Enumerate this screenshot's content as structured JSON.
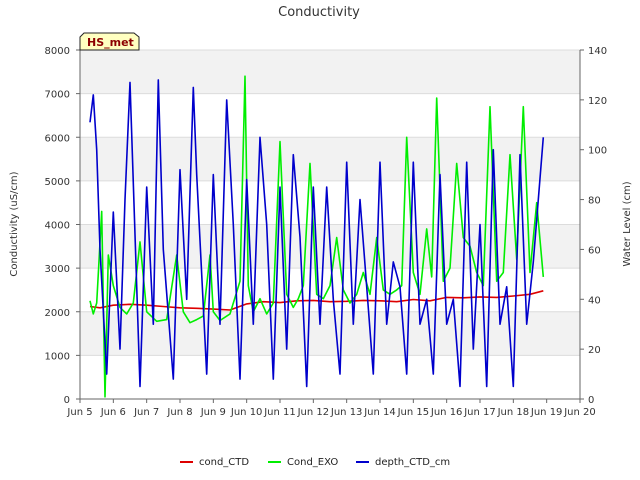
{
  "chart_data": {
    "type": "line",
    "title": "Conductivity",
    "badge": "HS_met",
    "xlabel": "",
    "ylabel_left": "Conductivity (uS/cm)",
    "ylabel_right": "Water Level (cm)",
    "x_range": [
      5,
      20
    ],
    "ylim_left": [
      0,
      8000
    ],
    "ylim_right": [
      0,
      140
    ],
    "x_ticks": [
      5,
      6,
      7,
      8,
      9,
      10,
      11,
      12,
      13,
      14,
      15,
      16,
      17,
      18,
      19,
      20
    ],
    "x_tick_labels": [
      "Jun 5",
      "Jun 6",
      "Jun 7",
      "Jun 8",
      "Jun 9",
      "Jun 10",
      "Jun 11",
      "Jun 12",
      "Jun 13",
      "Jun 14",
      "Jun 15",
      "Jun 16",
      "Jun 17",
      "Jun 18",
      "Jun 19",
      "Jun 20"
    ],
    "y_ticks_left": [
      0,
      1000,
      2000,
      3000,
      4000,
      5000,
      6000,
      7000,
      8000
    ],
    "y_ticks_right": [
      0,
      20,
      40,
      60,
      80,
      100,
      120,
      140
    ],
    "grid": true,
    "legend_position": "bottom",
    "series": [
      {
        "name": "cond_CTD",
        "color": "#dd0000",
        "axis": "left",
        "x": [
          5.3,
          5.6,
          6.0,
          6.5,
          7.0,
          7.5,
          8.0,
          8.5,
          9.0,
          9.5,
          10.0,
          10.5,
          11.0,
          11.5,
          12.0,
          12.5,
          13.0,
          13.5,
          14.0,
          14.5,
          15.0,
          15.5,
          16.0,
          16.5,
          17.0,
          17.5,
          18.0,
          18.5,
          18.9
        ],
        "y": [
          2120,
          2090,
          2150,
          2170,
          2150,
          2120,
          2090,
          2080,
          2060,
          2040,
          2180,
          2230,
          2210,
          2250,
          2260,
          2230,
          2240,
          2260,
          2250,
          2230,
          2280,
          2250,
          2330,
          2320,
          2340,
          2330,
          2360,
          2400,
          2480
        ]
      },
      {
        "name": "Cond_EXO",
        "color": "#00ee00",
        "axis": "left",
        "x": [
          5.3,
          5.4,
          5.5,
          5.65,
          5.75,
          5.85,
          6.0,
          6.2,
          6.4,
          6.6,
          6.8,
          7.0,
          7.3,
          7.6,
          7.9,
          8.1,
          8.3,
          8.5,
          8.7,
          8.9,
          9.0,
          9.2,
          9.5,
          9.8,
          9.95,
          10.05,
          10.2,
          10.4,
          10.6,
          10.8,
          11.0,
          11.2,
          11.4,
          11.55,
          11.7,
          11.9,
          12.1,
          12.3,
          12.5,
          12.7,
          12.9,
          13.1,
          13.3,
          13.5,
          13.7,
          13.9,
          14.1,
          14.3,
          14.5,
          14.65,
          14.8,
          15.0,
          15.2,
          15.4,
          15.55,
          15.7,
          15.9,
          16.1,
          16.3,
          16.5,
          16.7,
          16.9,
          17.1,
          17.3,
          17.5,
          17.7,
          17.9,
          18.1,
          18.3,
          18.5,
          18.7,
          18.9
        ],
        "y": [
          2250,
          1950,
          2200,
          4300,
          50,
          3300,
          2600,
          2100,
          1950,
          2200,
          3600,
          2000,
          1780,
          1820,
          3300,
          2000,
          1750,
          1820,
          1900,
          3300,
          2000,
          1800,
          1950,
          2700,
          7400,
          2600,
          2000,
          2300,
          1950,
          2200,
          5900,
          2400,
          2100,
          2300,
          2600,
          5400,
          2400,
          2300,
          2600,
          3700,
          2500,
          2200,
          2400,
          2900,
          2400,
          3700,
          2500,
          2400,
          2500,
          2600,
          6000,
          2900,
          2400,
          3900,
          2800,
          6900,
          2700,
          3000,
          5400,
          3700,
          3500,
          2900,
          2600,
          6700,
          2700,
          2900,
          5600,
          3200,
          6700,
          2900,
          4500,
          2800
        ]
      },
      {
        "name": "depth_CTD_cm",
        "color": "#0000cc",
        "axis": "right",
        "x": [
          5.3,
          5.4,
          5.5,
          5.6,
          5.8,
          6.0,
          6.2,
          6.35,
          6.5,
          6.8,
          7.0,
          7.2,
          7.35,
          7.5,
          7.8,
          8.0,
          8.2,
          8.4,
          8.5,
          8.8,
          9.0,
          9.2,
          9.4,
          9.6,
          9.8,
          10.0,
          10.2,
          10.4,
          10.6,
          10.8,
          11.0,
          11.2,
          11.4,
          11.6,
          11.8,
          12.0,
          12.2,
          12.4,
          12.6,
          12.8,
          13.0,
          13.2,
          13.4,
          13.6,
          13.8,
          14.0,
          14.2,
          14.4,
          14.6,
          14.8,
          15.0,
          15.2,
          15.4,
          15.6,
          15.8,
          16.0,
          16.2,
          16.4,
          16.6,
          16.8,
          17.0,
          17.2,
          17.4,
          17.6,
          17.8,
          18.0,
          18.2,
          18.4,
          18.6,
          18.9
        ],
        "y": [
          111,
          122,
          100,
          60,
          10,
          75,
          20,
          80,
          127,
          5,
          85,
          30,
          128,
          60,
          8,
          92,
          40,
          125,
          90,
          10,
          90,
          30,
          120,
          70,
          8,
          88,
          30,
          105,
          70,
          8,
          85,
          20,
          98,
          65,
          5,
          85,
          30,
          85,
          40,
          10,
          95,
          30,
          80,
          45,
          10,
          95,
          30,
          55,
          45,
          10,
          95,
          30,
          40,
          10,
          90,
          30,
          40,
          5,
          95,
          20,
          70,
          5,
          100,
          30,
          45,
          5,
          98,
          30,
          55,
          105
        ]
      }
    ]
  }
}
